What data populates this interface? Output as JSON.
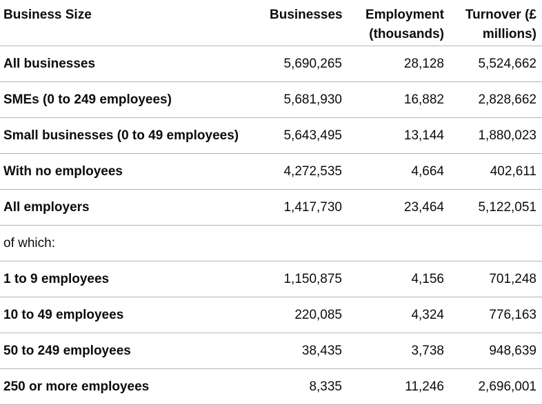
{
  "headers": {
    "business_size": "Business Size",
    "businesses": "Businesses",
    "employment": "Employment (thousands)",
    "turnover": "Turnover (£ millions)"
  },
  "rows": [
    {
      "label": "All businesses",
      "businesses": "5,690,265",
      "employment": "28,128",
      "turnover": "5,524,662"
    },
    {
      "label": "SMEs (0 to 249 employees)",
      "businesses": "5,681,930",
      "employment": "16,882",
      "turnover": "2,828,662"
    },
    {
      "label": "Small businesses (0 to 49 employees)",
      "businesses": "5,643,495",
      "employment": "13,144",
      "turnover": "1,880,023"
    },
    {
      "label": "With no employees",
      "businesses": "4,272,535",
      "employment": "4,664",
      "turnover": "402,611"
    },
    {
      "label": "All employers",
      "businesses": "1,417,730",
      "employment": "23,464",
      "turnover": "5,122,051"
    },
    {
      "label": "of which:",
      "businesses": "",
      "employment": "",
      "turnover": ""
    },
    {
      "label": "1 to 9 employees",
      "businesses": "1,150,875",
      "employment": "4,156",
      "turnover": "701,248"
    },
    {
      "label": "10 to 49 employees",
      "businesses": "220,085",
      "employment": "4,324",
      "turnover": "776,163"
    },
    {
      "label": "50 to 249 employees",
      "businesses": "38,435",
      "employment": "3,738",
      "turnover": "948,639"
    },
    {
      "label": "250 or more employees",
      "businesses": "8,335",
      "employment": "11,246",
      "turnover": "2,696,001"
    }
  ]
}
